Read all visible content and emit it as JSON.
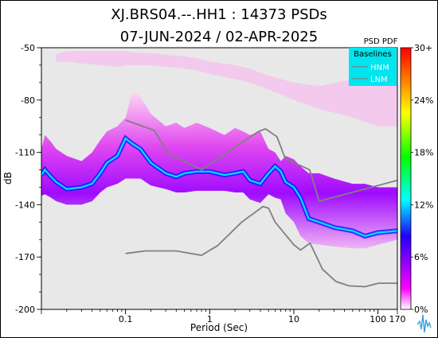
{
  "chart_data": {
    "type": "heatmap",
    "title_line1": "XJ.BRS04.--.HH1 : 14373 PSDs",
    "title_line2": "07-JUN-2024 / 02-APR-2025",
    "xlabel": "Period (Sec)",
    "ylabel": "dB",
    "x_scale": "log",
    "xlim": [
      0.01,
      170
    ],
    "ylim": [
      -200,
      -50
    ],
    "x_ticks": [
      "0.1",
      "1",
      "10",
      "100",
      "170"
    ],
    "x_tick_values": [
      0.1,
      1,
      10,
      100,
      170
    ],
    "y_ticks": [
      "-50",
      "-80",
      "-110",
      "-140",
      "-170",
      "-200"
    ],
    "y_tick_values": [
      -50,
      -80,
      -110,
      -140,
      -170,
      -200
    ],
    "background_color": "#e8e8e8",
    "colorbar": {
      "title": "PSD PDF",
      "labels": [
        "30+",
        "24%",
        "18%",
        "12%",
        "6%",
        "0%"
      ],
      "range": [
        0,
        30
      ],
      "colors": [
        "#ffffff",
        "#ff00ff",
        "#2000ff",
        "#00ffff",
        "#00ff00",
        "#ffff00",
        "#ff0000"
      ]
    },
    "legend": {
      "title": "Baselines",
      "items": [
        "HNM",
        "LNM"
      ],
      "background": "#00e5ee",
      "placement": "top-right"
    },
    "series": [
      {
        "name": "HNM",
        "color": "#808080",
        "x": [
          0.1,
          0.22,
          0.32,
          0.8,
          3.8,
          4.6,
          6.3,
          7.9,
          15.4,
          20,
          170
        ],
        "y": [
          -91.5,
          -97.4,
          -110.5,
          -120,
          -98,
          -96.5,
          -101,
          -113.5,
          -120,
          -138,
          -126
        ]
      },
      {
        "name": "LNM",
        "color": "#808080",
        "x": [
          0.1,
          0.17,
          0.4,
          0.8,
          1.24,
          2.4,
          4.3,
          5,
          6,
          10,
          12,
          15.6,
          21.9,
          31.6,
          45,
          70,
          101,
          154,
          170
        ],
        "y": [
          -168,
          -166.5,
          -166.5,
          -169,
          -163.5,
          -150,
          -141,
          -142,
          -150,
          -163,
          -166,
          -162,
          -177,
          -184,
          -186.5,
          -187,
          -185,
          -185,
          -185
        ]
      }
    ],
    "density_bands": [
      {
        "label": "main-distribution",
        "x": [
          0.01,
          0.011,
          0.013,
          0.015,
          0.02,
          0.03,
          0.04,
          0.05,
          0.06,
          0.08,
          0.1,
          0.12,
          0.15,
          0.2,
          0.3,
          0.4,
          0.5,
          0.7,
          1,
          1.5,
          2,
          2.5,
          3,
          4,
          5,
          6,
          7,
          8,
          10,
          12,
          15,
          20,
          30,
          50,
          70,
          100,
          170
        ],
        "upper": [
          -108,
          -100,
          -104,
          -108,
          -112,
          -115,
          -110,
          -103,
          -98,
          -95,
          -90,
          -75,
          -78,
          -88,
          -95,
          -93,
          -96,
          -93,
          -96,
          -100,
          -96,
          -98,
          -100,
          -98,
          -108,
          -110,
          -115,
          -112,
          -114,
          -118,
          -122,
          -122,
          -125,
          -128,
          -128,
          -130,
          -130
        ],
        "core": [
          -123,
          -120,
          -124,
          -127,
          -131,
          -130,
          -128,
          -122,
          -116,
          -112,
          -102,
          -105,
          -108,
          -116,
          -122,
          -124,
          -122,
          -121,
          -121,
          -123,
          -122,
          -121,
          -126,
          -128,
          -122,
          -118,
          -121,
          -127,
          -130,
          -136,
          -148,
          -150,
          -153,
          -155,
          -158,
          -156,
          -155
        ],
        "lower": [
          -135,
          -134,
          -136,
          -138,
          -140,
          -140,
          -138,
          -133,
          -130,
          -128,
          -125,
          -125,
          -125,
          -129,
          -131,
          -133,
          -133,
          -132,
          -132,
          -132,
          -133,
          -133,
          -137,
          -139,
          -134,
          -136,
          -137,
          -145,
          -150,
          -158,
          -162,
          -163,
          -164,
          -165,
          -165,
          -163,
          -160
        ]
      },
      {
        "label": "high-noise-outliers",
        "x": [
          0.015,
          0.02,
          0.03,
          0.05,
          0.08,
          0.1,
          0.15,
          0.2,
          0.3,
          0.5,
          0.7,
          1,
          2,
          3,
          5,
          10,
          20,
          50,
          100,
          170
        ],
        "upper": [
          -54,
          -52,
          -52,
          -52,
          -52,
          -52,
          -53,
          -53,
          -54,
          -55,
          -56,
          -58,
          -60,
          -62,
          -66,
          -70,
          -72,
          -68,
          -58,
          -58
        ],
        "lower": [
          -58,
          -58,
          -59,
          -60,
          -61,
          -60,
          -60,
          -60,
          -61,
          -62,
          -63,
          -65,
          -68,
          -70,
          -74,
          -80,
          -85,
          -90,
          -95,
          -95
        ]
      }
    ]
  }
}
